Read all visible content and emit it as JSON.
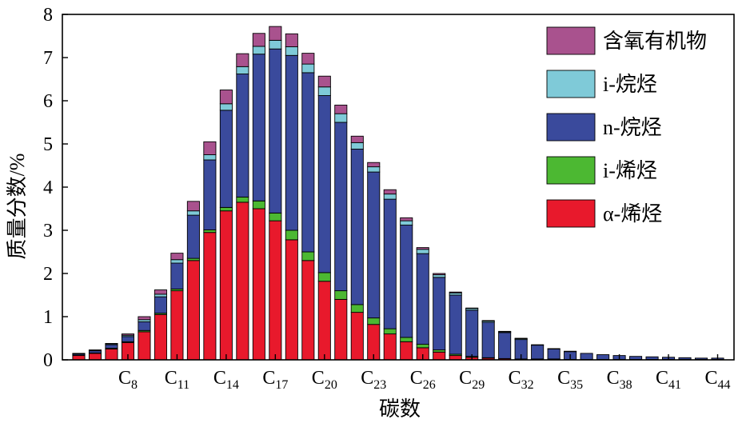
{
  "chart_data": {
    "type": "bar",
    "stacked": true,
    "xlabel": "碳数",
    "ylabel": "质量分数/%",
    "ylim": [
      0,
      8
    ],
    "yticks": [
      "0",
      "1",
      "2",
      "3",
      "4",
      "5",
      "6",
      "7",
      "8"
    ],
    "xtick_labels": [
      {
        "base": "C",
        "sub": "8",
        "category": 8
      },
      {
        "base": "C",
        "sub": "11",
        "category": 11
      },
      {
        "base": "C",
        "sub": "14",
        "category": 14
      },
      {
        "base": "C",
        "sub": "17",
        "category": 17
      },
      {
        "base": "C",
        "sub": "20",
        "category": 20
      },
      {
        "base": "C",
        "sub": "23",
        "category": 23
      },
      {
        "base": "C",
        "sub": "26",
        "category": 26
      },
      {
        "base": "C",
        "sub": "29",
        "category": 29
      },
      {
        "base": "C",
        "sub": "32",
        "category": 32
      },
      {
        "base": "C",
        "sub": "35",
        "category": 35
      },
      {
        "base": "C",
        "sub": "38",
        "category": 38
      },
      {
        "base": "C",
        "sub": "41",
        "category": 41
      },
      {
        "base": "C",
        "sub": "44",
        "category": 44
      }
    ],
    "categories": [
      5,
      6,
      7,
      8,
      9,
      10,
      11,
      12,
      13,
      14,
      15,
      16,
      17,
      18,
      19,
      20,
      21,
      22,
      23,
      24,
      25,
      26,
      27,
      28,
      29,
      30,
      31,
      32,
      33,
      34,
      35,
      36,
      37,
      38,
      39,
      40,
      41,
      42,
      43,
      44
    ],
    "legend_position": "top-right",
    "grid": false,
    "series": [
      {
        "name": "α-烯烃",
        "color": "#e8192c",
        "values": [
          0.1,
          0.15,
          0.25,
          0.4,
          0.65,
          1.05,
          1.6,
          2.3,
          2.95,
          3.45,
          3.65,
          3.5,
          3.22,
          2.78,
          2.3,
          1.82,
          1.4,
          1.1,
          0.82,
          0.6,
          0.42,
          0.28,
          0.18,
          0.1,
          0.06,
          0.04,
          0.03,
          0.02,
          0.02,
          0.02,
          0.01,
          0.01,
          0.01,
          0.01,
          0.01,
          0.01,
          0.01,
          0.01,
          0.01,
          0.01
        ]
      },
      {
        "name": "i-烯烃",
        "color": "#4cb832",
        "values": [
          0.01,
          0.01,
          0.02,
          0.02,
          0.03,
          0.03,
          0.04,
          0.05,
          0.06,
          0.08,
          0.12,
          0.18,
          0.18,
          0.22,
          0.2,
          0.2,
          0.2,
          0.18,
          0.15,
          0.12,
          0.1,
          0.08,
          0.05,
          0.03,
          0.02,
          0.01,
          0,
          0,
          0,
          0,
          0,
          0,
          0,
          0,
          0,
          0,
          0,
          0,
          0,
          0
        ]
      },
      {
        "name": "n-烷烃",
        "color": "#3a4a9c",
        "values": [
          0.03,
          0.05,
          0.08,
          0.12,
          0.2,
          0.38,
          0.6,
          1.0,
          1.62,
          2.25,
          2.85,
          3.4,
          3.8,
          4.05,
          4.15,
          4.1,
          3.9,
          3.6,
          3.38,
          3.0,
          2.6,
          2.1,
          1.68,
          1.37,
          1.07,
          0.82,
          0.6,
          0.45,
          0.32,
          0.23,
          0.18,
          0.14,
          0.11,
          0.09,
          0.07,
          0.06,
          0.05,
          0.04,
          0.03,
          0.03
        ]
      },
      {
        "name": "i-烷烃",
        "color": "#7fcad8",
        "values": [
          0.005,
          0.01,
          0.02,
          0.03,
          0.05,
          0.06,
          0.08,
          0.1,
          0.12,
          0.15,
          0.17,
          0.18,
          0.2,
          0.2,
          0.2,
          0.2,
          0.2,
          0.15,
          0.12,
          0.12,
          0.1,
          0.1,
          0.06,
          0.05,
          0.04,
          0.03,
          0.02,
          0.02,
          0.01,
          0.01,
          0.01,
          0,
          0,
          0,
          0,
          0,
          0,
          0,
          0,
          0
        ]
      },
      {
        "name": "含氧有机物",
        "color": "#a9528e",
        "values": [
          0.005,
          0.01,
          0.01,
          0.03,
          0.07,
          0.1,
          0.15,
          0.22,
          0.3,
          0.32,
          0.3,
          0.3,
          0.32,
          0.3,
          0.25,
          0.25,
          0.2,
          0.15,
          0.1,
          0.1,
          0.07,
          0.04,
          0.03,
          0.02,
          0.01,
          0.01,
          0.01,
          0.01,
          0,
          0,
          0,
          0,
          0,
          0,
          0,
          0,
          0,
          0,
          0,
          0
        ]
      }
    ],
    "legend_order": [
      "含氧有机物",
      "i-烷烃",
      "n-烷烃",
      "i-烯烃",
      "α-烯烃"
    ]
  }
}
